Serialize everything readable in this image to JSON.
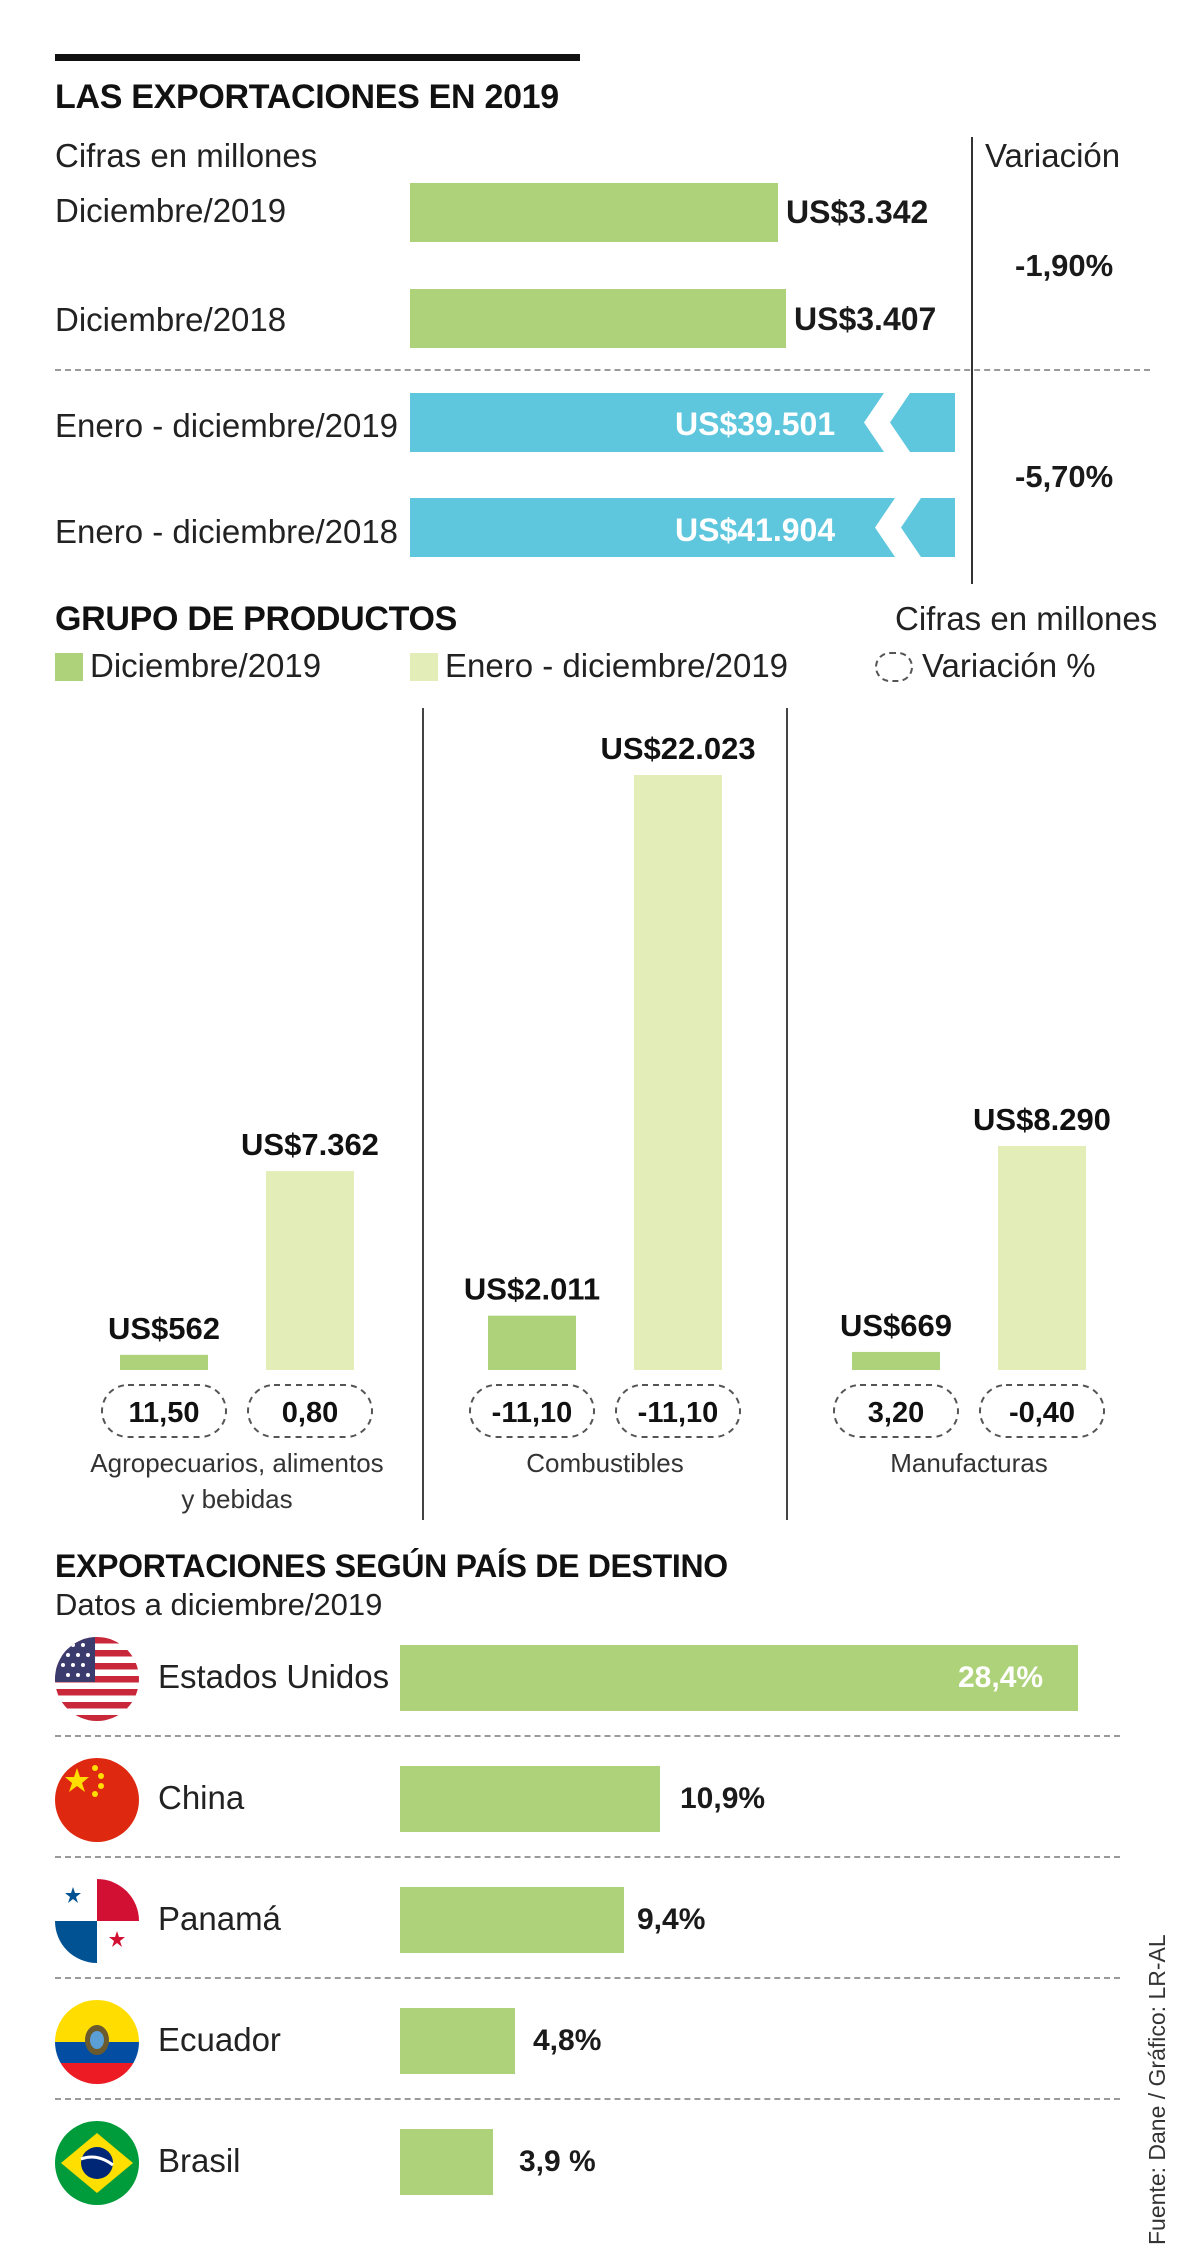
{
  "colors": {
    "green": "#aed27a",
    "light_green": "#e3edb7",
    "blue": "#5ec7dd",
    "dark": "#111111"
  },
  "exports": {
    "title": "LAS EXPORTACIONES EN 2019",
    "units": "Cifras en millones",
    "variation_header": "Variación",
    "rows": [
      {
        "label": "Diciembre/2019",
        "value": 3342,
        "value_label": "US$3.342"
      },
      {
        "label": "Diciembre/2018",
        "value": 3407,
        "value_label": "US$3.407"
      },
      {
        "label": "Enero - diciembre/2019",
        "value": 39501,
        "value_label": "US$39.501"
      },
      {
        "label": "Enero - diciembre/2018",
        "value": 41904,
        "value_label": "US$41.904"
      }
    ],
    "variation_december": "-1,90%",
    "variation_year": "-5,70%"
  },
  "products": {
    "title": "GRUPO DE PRODUCTOS",
    "units": "Cifras en millones",
    "legend": {
      "december": "Diciembre/2019",
      "year": "Enero - diciembre/2019",
      "variation": "Variación %"
    }
  },
  "chart_data": {
    "type": "bar",
    "title": "GRUPO DE PRODUCTOS",
    "categories": [
      "Agropecuarios, alimentos y bebidas",
      "Combustibles",
      "Manufacturas"
    ],
    "category_lines": [
      [
        "Agropecuarios, alimentos",
        "y bebidas"
      ],
      [
        "Combustibles"
      ],
      [
        "Manufacturas"
      ]
    ],
    "series": [
      {
        "name": "Diciembre/2019",
        "values": [
          562,
          2011,
          669
        ],
        "labels": [
          "US$562",
          "US$2.011",
          "US$669"
        ],
        "variation": [
          "11,50",
          "-11,10",
          "3,20"
        ]
      },
      {
        "name": "Enero - diciembre/2019",
        "values": [
          7362,
          22023,
          8290
        ],
        "labels": [
          "US$7.362",
          "US$22.023",
          "US$8.290"
        ],
        "variation": [
          "0,80",
          "-11,10",
          "-0,40"
        ]
      }
    ],
    "ylim": [
      0,
      22023
    ]
  },
  "destinations": {
    "title": "EXPORTACIONES SEGÚN PAÍS DE DESTINO",
    "subtitle": "Datos a diciembre/2019",
    "rows": [
      {
        "country": "Estados Unidos",
        "flag": "usa-flag-icon",
        "value": 28.4,
        "label": "28,4%"
      },
      {
        "country": "China",
        "flag": "china-flag-icon",
        "value": 10.9,
        "label": "10,9%"
      },
      {
        "country": "Panamá",
        "flag": "panama-flag-icon",
        "value": 9.4,
        "label": "9,4%"
      },
      {
        "country": "Ecuador",
        "flag": "ecuador-flag-icon",
        "value": 4.8,
        "label": "4,8%"
      },
      {
        "country": "Brasil",
        "flag": "brazil-flag-icon",
        "value": 3.9,
        "label": "3,9 %"
      }
    ]
  },
  "source": "Fuente: Dane / Gráfico: LR-AL"
}
